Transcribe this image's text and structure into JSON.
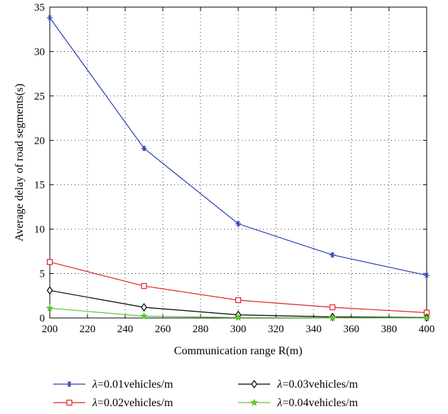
{
  "chart_data": {
    "type": "line",
    "xlabel": "Communication range R(m)",
    "ylabel": "Average delay of road segments(s)",
    "xlim": [
      200,
      400
    ],
    "ylim": [
      0,
      35
    ],
    "xticks": [
      200,
      220,
      240,
      260,
      280,
      300,
      320,
      340,
      360,
      380,
      400
    ],
    "yticks": [
      0,
      5,
      10,
      15,
      20,
      25,
      30,
      35
    ],
    "grid": true,
    "grid_style": "dotted",
    "legend_position": "bottom",
    "x": [
      200,
      250,
      300,
      350,
      400
    ],
    "series": [
      {
        "name": "λ=0.01vehicles/m",
        "symbol": "λ",
        "rest": "=0.01vehicles/m",
        "color": "#2b3fb5",
        "marker": "asterisk",
        "values": [
          33.8,
          19.1,
          10.6,
          7.1,
          4.8
        ]
      },
      {
        "name": "λ=0.02vehicles/m",
        "symbol": "λ",
        "rest": "=0.02vehicles/m",
        "color": "#e02020",
        "marker": "square",
        "values": [
          6.3,
          3.6,
          2.0,
          1.2,
          0.6
        ]
      },
      {
        "name": "λ=0.03vehicles/m",
        "symbol": "λ",
        "rest": "=0.03vehicles/m",
        "color": "#000000",
        "marker": "diamond",
        "values": [
          3.1,
          1.2,
          0.35,
          0.12,
          0.05
        ]
      },
      {
        "name": "λ=0.04vehicles/m",
        "symbol": "λ",
        "rest": "=0.04vehicles/m",
        "color": "#5fc436",
        "marker": "star",
        "values": [
          1.1,
          0.2,
          0.05,
          0.02,
          0.0
        ]
      }
    ]
  }
}
